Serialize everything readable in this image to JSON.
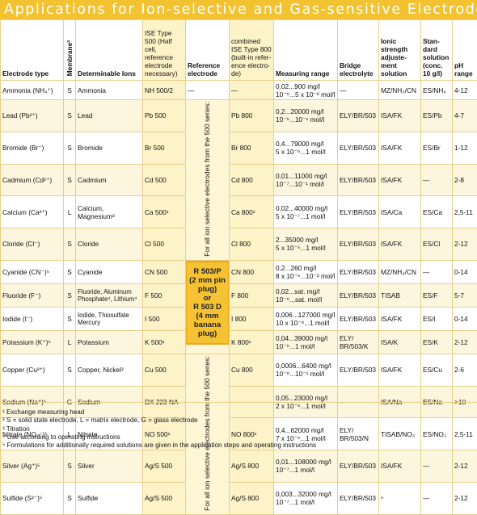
{
  "title": "Applications for Ion-selective and Gas-sensitive Electrodes",
  "headers": {
    "electrode_type": "Electrode type",
    "membrane": "Membrane²",
    "determinable_ions": "Determinable Ions",
    "ise500": "ISE Type 500 (Half cell, reference electrode necessary)",
    "reference": "Reference electrode",
    "ise800": "combined ISE Type 800 (built-in refer­ence electro­de)",
    "measuring_range": "Measuring range",
    "bridge": "Bridge electrolyte",
    "ionic": "Ionic strength adjuste­ment soluti­on",
    "standard": "Stan­dard solution (conc. 10 g/l)",
    "ph": "pH range"
  },
  "rows": [
    {
      "type": "Ammonia (NH₄⁺)",
      "membrane": "S",
      "ions": "Ammonia",
      "ise500": "NH 500/2",
      "ise800": "—",
      "range1": "0,02...900 mg/l",
      "range2": "10⁻⁶...5 x 10⁻² mol/l",
      "bridge": "—",
      "isa": "MZ/NH₃/CN",
      "std": "ES/NH₄",
      "ph": "4-12"
    },
    {
      "type": "Lead (Pb²⁺)",
      "membrane": "S",
      "ions": "Lead",
      "ise500": "Pb 500",
      "ise800": "Pb 800",
      "range1": "0,2...20000 mg/l",
      "range2": "10⁻⁶...10⁻¹ mol/l",
      "bridge": "ELY/BR/503",
      "isa": "ISA/FK",
      "std": "ES/Pb",
      "ph": "4-7"
    },
    {
      "type": "Bromide (Br⁻)",
      "membrane": "S",
      "ions": "Bromide",
      "ise500": "Br 500",
      "ise800": "Br 800",
      "range1": "0,4...79000 mg/l",
      "range2": "5 x 10⁻⁶...1 mol/l",
      "bridge": "ELY/BR/503",
      "isa": "ISA/FK",
      "std": "ES/Br",
      "ph": "1-12"
    },
    {
      "type": "Cadmium (Cd²⁺)",
      "membrane": "S",
      "ions": "Cadmium",
      "ise500": "Cd 500",
      "ise800": "Cd 800",
      "range1": "0,01...11000 mg/l",
      "range2": "10⁻⁷...10⁻¹ mol/l",
      "bridge": "ELY/BR/503",
      "isa": "ISA/FK",
      "std": "—",
      "ph": "2-8"
    },
    {
      "type": "Calcium (Ca²⁺)",
      "membrane": "L",
      "ions": "Calcium, Magnesium³",
      "ise500": "Ca 500¹",
      "ise800": "Ca 800¹",
      "range1": "0,02...40000 mg/l",
      "range2": "5 x 10⁻⁷...1 mol/l",
      "bridge": "ELY/BR/503",
      "isa": "ISA/Ca",
      "std": "ES/Ca",
      "ph": "2,5-11"
    },
    {
      "type": "Cloride (Cl⁻)",
      "membrane": "S",
      "ions": "Cloride",
      "ise500": "Cl 500",
      "ise800": "Cl 800",
      "range1": "2...35000 mg/l",
      "range2": "5 x 10⁻⁵...1 mol/l",
      "bridge": "ELY/BR/503",
      "isa": "ISA/FK",
      "std": "ES/Cl",
      "ph": "2-12"
    },
    {
      "type": "Cyanide (CN⁻)⁵",
      "membrane": "S",
      "ions": "Cyanide",
      "ise500": "CN 500",
      "ise800": "CN 800",
      "range1": "0,2...260 mg/l",
      "range2": "8 x 10⁻⁶...10⁻² mol/l",
      "bridge": "ELY/BR/503",
      "isa": "MZ/NH₃/CN",
      "std": "—",
      "ph": "0-14"
    },
    {
      "type": "Fluoride (F⁻)",
      "membrane": "S",
      "ions": "Fluoride, Aluminum Phosphate⁴, Lithium⁴",
      "ise500": "F 500",
      "ise800": "F 800",
      "range1": "0,02...sat. mg/l",
      "range2": "10⁻⁶...sat. mol/l",
      "bridge": "ELY/BR/503",
      "isa": "TISAB",
      "std": "ES/F",
      "ph": "5-7"
    },
    {
      "type": "Iodide (I⁻)",
      "membrane": "S",
      "ions": "Iodide, Thiosulfate Mercury",
      "ise500": "I 500",
      "ise800": "I 800",
      "range1": "0,006...127000 mg/l",
      "range2": "10 x 10⁻⁸...1 mol/l",
      "bridge": "ELY/BR/503",
      "isa": "ISA/FK",
      "std": "ES/I",
      "ph": "0-14"
    },
    {
      "type": "Potassium (K⁺)⁵",
      "membrane": "L",
      "ions": "Potassium",
      "ise500": "K 500¹",
      "ise800": "K 800¹",
      "range1": "0,04...39000 mg/l",
      "range2": "10⁻⁶...1 mol/l",
      "bridge": "ELY/ BR/503/K",
      "isa": "ISA/K",
      "std": "ES/K",
      "ph": "2-12"
    },
    {
      "type": "Copper (Cu²⁺)",
      "membrane": "S",
      "ions": "Copper, Nickel³",
      "ise500": "Cu 500",
      "ise800": "Cu 800",
      "range1": "0,0006...6400 mg/l",
      "range2": "10⁻⁸...10⁻¹ mol/l",
      "bridge": "ELY/BR/503",
      "isa": "ISA/FK",
      "std": "ES/Cu",
      "ph": "2-6"
    },
    {
      "type": "Sodium (Na⁺)⁵",
      "membrane": "G",
      "ions": "Sodium",
      "ise500": "DX 223 NA",
      "ise800": "",
      "range1": "0,05...23000 mg/l",
      "range2": "2 x 10⁻⁶...1 mol/l",
      "bridge": "–",
      "isa": "ISA/Na",
      "std": "ES/Na",
      "ph": ">10"
    },
    {
      "type": "Nitrate (NO₃⁻)⁵",
      "membrane": "L",
      "ions": "Nitrate",
      "ise500": "NO 500¹",
      "ise800": "NO 800¹",
      "range1": "0,4...62000 mg/l",
      "range2": "7 x 10⁻⁶...1 mol/l",
      "bridge": "ELY/ BR/503/N",
      "isa": "TISAB/NO₃",
      "std": "ES/NO₃",
      "ph": "2,5-11"
    },
    {
      "type": "Silver (Ag⁺)⁵",
      "membrane": "S",
      "ions": "Silver",
      "ise500": "Ag/S 500",
      "ise800": "Ag/S 800",
      "range1": "0,01...108000 mg/l",
      "range2": "10⁻⁷...1 mol/l",
      "bridge": "ELY/BR/503",
      "isa": "ISA/FK",
      "std": "—",
      "ph": "2-12"
    },
    {
      "type": "Sulfide (S²⁻)⁵",
      "membrane": "S",
      "ions": "Sulfide",
      "ise500": "Ag/S 500",
      "ise800": "Ag/S 800",
      "range1": "0,003...32000 mg/l",
      "range2": "10⁻⁷...1 mol/l",
      "bridge": "ELY/BR/503",
      "isa": "⁵",
      "std": "—",
      "ph": "2-12"
    }
  ],
  "reference": {
    "top_vertical": "For all ion selective electrodes from the 500 series:",
    "box_line1": "R 503/P",
    "box_line2": "(2 mm pin plug)",
    "box_line3": "or",
    "box_line4": "R 503 D",
    "box_line5": "(4 mm banana plug)",
    "bottom_vertical": "For all ion selective electrodes from the 500 series:",
    "first_row_dash": "—"
  },
  "footnotes": [
    "¹ Exchange measuring head",
    "² S = solid state electrode, L = matrix electrode, G = glass electrode",
    "³ Titration",
    "⁴ Use according to operating instructions",
    "⁵ Formulations for additionally required solutions are given in the application steps and operating instructions"
  ],
  "colors": {
    "accent": "#f2c230",
    "border": "#e9cf8a",
    "box": "#f4c233"
  }
}
